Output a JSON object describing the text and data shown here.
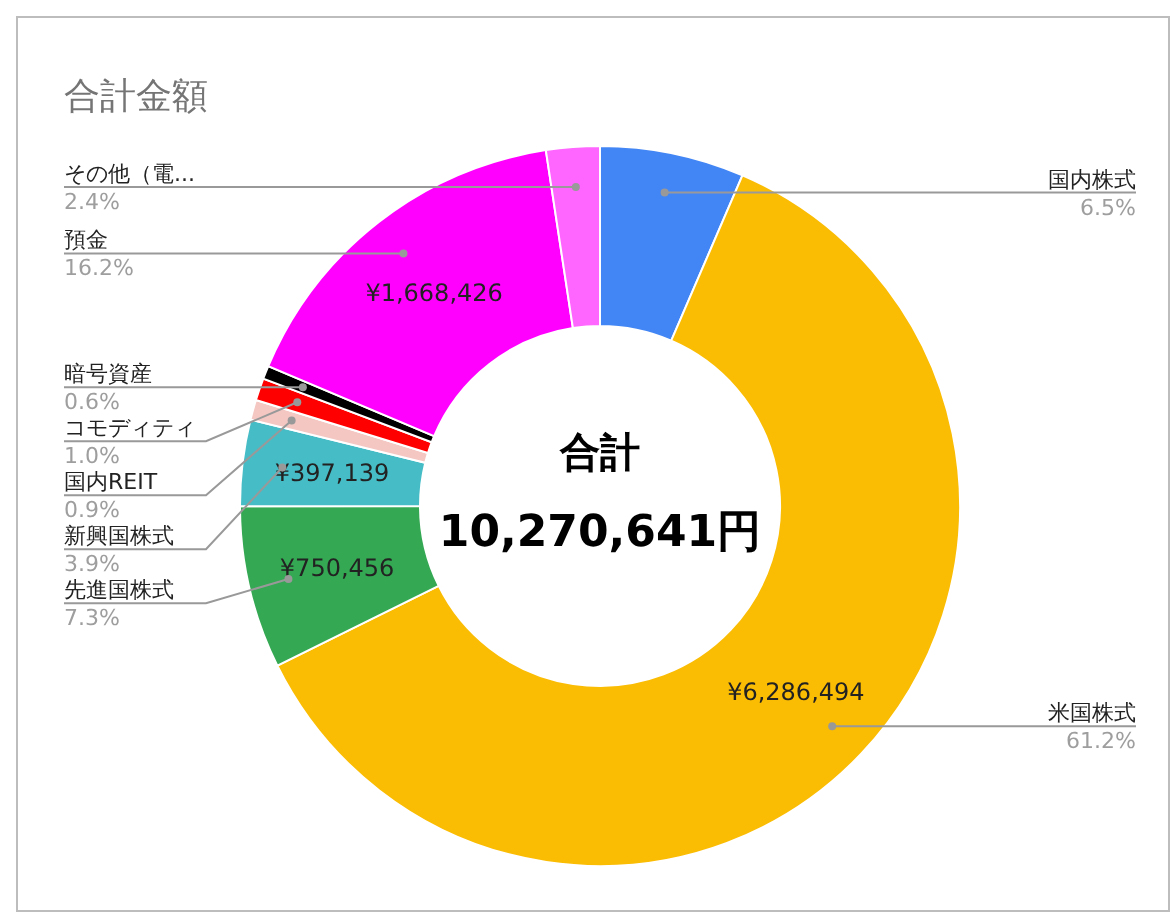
{
  "chart_data": {
    "type": "donut",
    "title": "合計金額",
    "categories": [
      "国内株式",
      "米国株式",
      "先進国株式",
      "新興国株式",
      "国内REIT",
      "コモディティ",
      "暗号資産",
      "預金",
      "その他（電..."
    ],
    "values": [
      665000,
      6286494,
      750456,
      397139,
      92000,
      103000,
      61000,
      1668426,
      247000
    ],
    "colors": [
      "#4285f4",
      "#fbbc04",
      "#34a853",
      "#46bdc6",
      "#f4c7c3",
      "#ff0000",
      "#000000",
      "#ff00ff",
      "#ff66ff"
    ],
    "value_labels": [
      null,
      "¥6,286,494",
      "¥750,456",
      "¥397,139",
      null,
      null,
      null,
      "¥1,668,426",
      null
    ],
    "annotations": [
      "合計",
      "10,270,641円",
      "6.5%",
      "61.2%",
      "7.3%",
      "3.9%",
      "0.9%",
      "1.0%",
      "0.6%",
      "16.2%",
      "2.4%"
    ],
    "legend": false
  }
}
